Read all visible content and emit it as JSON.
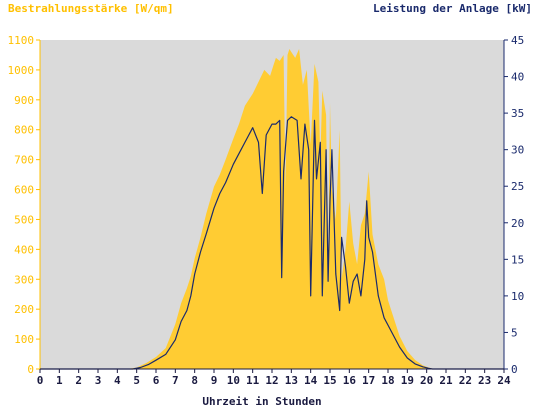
{
  "chart_data": {
    "type": "area",
    "left_title": "Bestrahlungsstärke [W/qm]",
    "right_title": "Leistung der Anlage [kW]",
    "xlabel": "Uhrzeit in Stunden",
    "xlim": [
      0,
      24
    ],
    "y_left_lim": [
      0,
      1100
    ],
    "y_right_lim": [
      0,
      45
    ],
    "x_ticks": [
      "0",
      "1",
      "2",
      "3",
      "4",
      "5",
      "6",
      "7",
      "8",
      "9",
      "10",
      "11",
      "12",
      "13",
      "14",
      "15",
      "16",
      "17",
      "18",
      "19",
      "20",
      "21",
      "22",
      "23",
      "24"
    ],
    "y_left_ticks": [
      "0",
      "100",
      "200",
      "300",
      "400",
      "500",
      "600",
      "700",
      "800",
      "900",
      "1000",
      "1100"
    ],
    "y_right_ticks": [
      "0",
      "5",
      "10",
      "15",
      "20",
      "25",
      "30",
      "35",
      "40",
      "45"
    ],
    "grid": false,
    "colors": {
      "plot_background": "#dadada",
      "irradiance_fill": "#ffcc33",
      "power_line": "#1a2a6c",
      "left_axis_text": "#ffc000",
      "right_axis_text": "#1a2a6c"
    },
    "series": [
      {
        "axis": "left",
        "x": [
          4.5,
          5.0,
          5.5,
          6.0,
          6.5,
          7.0,
          7.3,
          7.6,
          7.8,
          8.0,
          8.3,
          8.6,
          9.0,
          9.3,
          9.6,
          10.0,
          10.3,
          10.6,
          11.0,
          11.3,
          11.6,
          11.9,
          12.1,
          12.2,
          12.4,
          12.6,
          12.7,
          12.8,
          12.9,
          13.0,
          13.2,
          13.4,
          13.6,
          13.8,
          14.0,
          14.2,
          14.4,
          14.5,
          14.6,
          14.8,
          14.9,
          15.0,
          15.1,
          15.3,
          15.5,
          15.6,
          15.8,
          16.0,
          16.2,
          16.4,
          16.6,
          16.8,
          17.0,
          17.2,
          17.5,
          17.8,
          18.0,
          18.3,
          18.6,
          19.0,
          19.4,
          19.8,
          20.1,
          20.4
        ],
        "values": [
          0,
          5,
          20,
          40,
          70,
          150,
          220,
          270,
          310,
          370,
          440,
          520,
          610,
          650,
          700,
          770,
          820,
          880,
          920,
          960,
          1000,
          980,
          1020,
          1040,
          1030,
          1050,
          600,
          1050,
          1070,
          1060,
          1040,
          1070,
          950,
          1000,
          750,
          1020,
          960,
          700,
          930,
          850,
          300,
          890,
          600,
          500,
          800,
          300,
          400,
          560,
          420,
          350,
          480,
          520,
          660,
          450,
          350,
          300,
          230,
          170,
          110,
          60,
          30,
          12,
          5,
          0
        ]
      },
      {
        "axis": "right",
        "x": [
          4.8,
          5.2,
          5.6,
          6.0,
          6.5,
          7.0,
          7.3,
          7.6,
          7.8,
          8.0,
          8.3,
          8.6,
          9.0,
          9.3,
          9.6,
          10.0,
          10.3,
          10.6,
          11.0,
          11.3,
          11.5,
          11.7,
          12.0,
          12.2,
          12.4,
          12.5,
          12.6,
          12.8,
          13.0,
          13.3,
          13.5,
          13.7,
          13.9,
          14.0,
          14.2,
          14.3,
          14.5,
          14.6,
          14.8,
          14.9,
          15.0,
          15.1,
          15.3,
          15.5,
          15.6,
          15.8,
          16.0,
          16.2,
          16.4,
          16.6,
          16.8,
          16.9,
          17.0,
          17.2,
          17.5,
          17.8,
          18.0,
          18.3,
          18.6,
          19.0,
          19.4,
          19.8,
          20.1,
          20.3,
          20.5
        ],
        "values": [
          0,
          0.2,
          0.6,
          1.2,
          2.0,
          4.0,
          6.5,
          8.0,
          10.0,
          13.0,
          16.0,
          18.5,
          22.0,
          24.0,
          25.5,
          28.0,
          29.5,
          31.0,
          33.0,
          31.0,
          24.0,
          32.0,
          33.5,
          33.5,
          34.0,
          12.5,
          27.0,
          34.0,
          34.5,
          34.0,
          26.0,
          33.5,
          30.0,
          10.0,
          34.0,
          26.0,
          31.0,
          10.0,
          30.0,
          12.0,
          23.0,
          30.0,
          13.0,
          8.0,
          18.0,
          14.0,
          9.0,
          12.0,
          13.0,
          10.0,
          15.0,
          23.0,
          18.0,
          16.0,
          10.0,
          7.0,
          6.0,
          4.5,
          3.0,
          1.5,
          0.7,
          0.3,
          0.1,
          0,
          0
        ]
      }
    ]
  }
}
